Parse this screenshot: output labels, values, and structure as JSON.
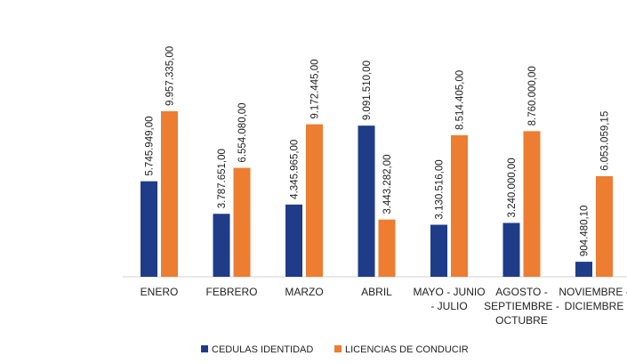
{
  "chart_data": {
    "type": "bar",
    "categories": [
      "ENERO",
      "FEBRERO",
      "MARZO",
      "ABRIL",
      "MAYO - JUNIO - JULIO",
      "AGOSTO - SEPTIEMBRE - OCTUBRE",
      "NOVIEMBRE - DICIEMBRE"
    ],
    "series": [
      {
        "name": "CEDULAS IDENTIDAD",
        "color": "#1f3c88",
        "values": [
          5745949,
          3787651,
          4345965,
          9091510,
          3130516,
          3240000,
          904480.1
        ],
        "value_labels": [
          "5.745.949,00",
          "3.787.651,00",
          "4.345.965,00",
          "9.091.510,00",
          "3.130.516,00",
          "3.240.000,00",
          "904.480,10"
        ]
      },
      {
        "name": "LICENCIAS DE CONDUCIR",
        "color": "#ed7d31",
        "values": [
          9957335,
          6554080,
          9172445,
          3443282,
          8514405,
          8760000,
          6053059.15
        ],
        "value_labels": [
          "9.957.335,00",
          "6.554.080,00",
          "9.172.445,00",
          "3.443.282,00",
          "8.514.405,00",
          "8.760.000,00",
          "6.053.059,15"
        ]
      }
    ],
    "legend": "bottom"
  }
}
